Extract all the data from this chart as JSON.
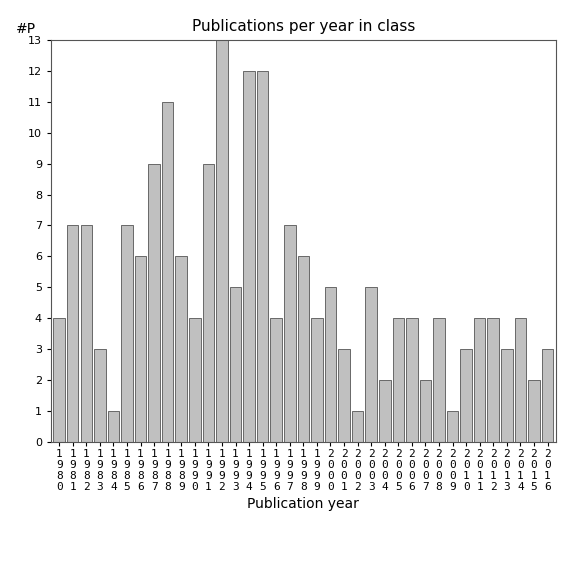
{
  "years": [
    "1980",
    "1981",
    "1982",
    "1983",
    "1984",
    "1985",
    "1986",
    "1987",
    "1988",
    "1989",
    "1990",
    "1991",
    "1992",
    "1993",
    "1994",
    "1995",
    "1996",
    "1997",
    "1998",
    "1999",
    "2000",
    "2001",
    "2002",
    "2003",
    "2004",
    "2005",
    "2006",
    "2007",
    "2008",
    "2009",
    "2010",
    "2011",
    "2012",
    "2013",
    "2014",
    "2015",
    "2016"
  ],
  "values": [
    4,
    7,
    7,
    3,
    1,
    7,
    6,
    9,
    11,
    6,
    4,
    9,
    13,
    5,
    12,
    12,
    4,
    7,
    6,
    4,
    5,
    3,
    1,
    5,
    2,
    4,
    4,
    2,
    4,
    1,
    3,
    4,
    4,
    3,
    4,
    2,
    3
  ],
  "bar_color": "#c0c0c0",
  "bar_edgecolor": "#555555",
  "title": "Publications per year in class",
  "xlabel": "Publication year",
  "ylabel": "#P",
  "ylim": [
    0,
    13
  ],
  "yticks": [
    0,
    1,
    2,
    3,
    4,
    5,
    6,
    7,
    8,
    9,
    10,
    11,
    12,
    13
  ],
  "background_color": "#ffffff",
  "title_fontsize": 11,
  "axis_label_fontsize": 10,
  "tick_fontsize": 8
}
